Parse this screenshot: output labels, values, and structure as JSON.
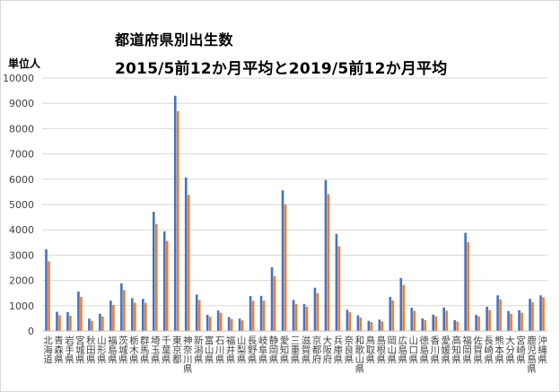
{
  "chart_data": {
    "type": "bar",
    "title": "都道府県別出生数",
    "subtitle": "2015/5前12か月平均と2019/5前12か月平均",
    "ylabel": "単位人",
    "ylim": [
      0,
      10000
    ],
    "yticks": [
      0,
      1000,
      2000,
      3000,
      4000,
      5000,
      6000,
      7000,
      8000,
      9000,
      10000
    ],
    "grid": true,
    "categories": [
      "北海道",
      "青森県",
      "岩手県",
      "宮城県",
      "秋田県",
      "山形県",
      "福島県",
      "茨城県",
      "栃木県",
      "群馬県",
      "埼玉県",
      "千葉県",
      "東京都",
      "神奈川県",
      "新潟県",
      "富山県",
      "石川県",
      "福井県",
      "山梨県",
      "長野県",
      "岐阜県",
      "静岡県",
      "愛知県",
      "三重県",
      "滋賀県",
      "京都府",
      "大阪府",
      "兵庫県",
      "奈良県",
      "和歌山県",
      "鳥取県",
      "島根県",
      "岡山県",
      "広島県",
      "山口県",
      "徳島県",
      "香川県",
      "愛媛県",
      "高知県",
      "福岡県",
      "佐賀県",
      "長崎県",
      "熊本県",
      "大分県",
      "宮崎県",
      "鹿児島県",
      "沖縄県"
    ],
    "series": [
      {
        "name": "",
        "color": "#4472c4",
        "values": [
          3230,
          760,
          750,
          1560,
          490,
          680,
          1200,
          1880,
          1300,
          1270,
          4710,
          3940,
          9300,
          6070,
          1440,
          640,
          810,
          550,
          490,
          1380,
          1390,
          2520,
          5560,
          1230,
          1060,
          1710,
          5970,
          3840,
          840,
          620,
          400,
          450,
          1350,
          2090,
          920,
          500,
          650,
          930,
          430,
          3880,
          640,
          960,
          1410,
          790,
          820,
          1270,
          1410
        ]
      },
      {
        "name": "",
        "color": "#ed7d31",
        "values": [
          2750,
          620,
          600,
          1350,
          400,
          570,
          1030,
          1620,
          1120,
          1110,
          4230,
          3560,
          8690,
          5380,
          1220,
          560,
          720,
          470,
          420,
          1190,
          1200,
          2160,
          5010,
          1070,
          960,
          1500,
          5410,
          3350,
          740,
          530,
          350,
          380,
          1210,
          1820,
          800,
          430,
          580,
          800,
          370,
          3510,
          580,
          830,
          1250,
          680,
          720,
          1140,
          1330
        ]
      }
    ]
  }
}
